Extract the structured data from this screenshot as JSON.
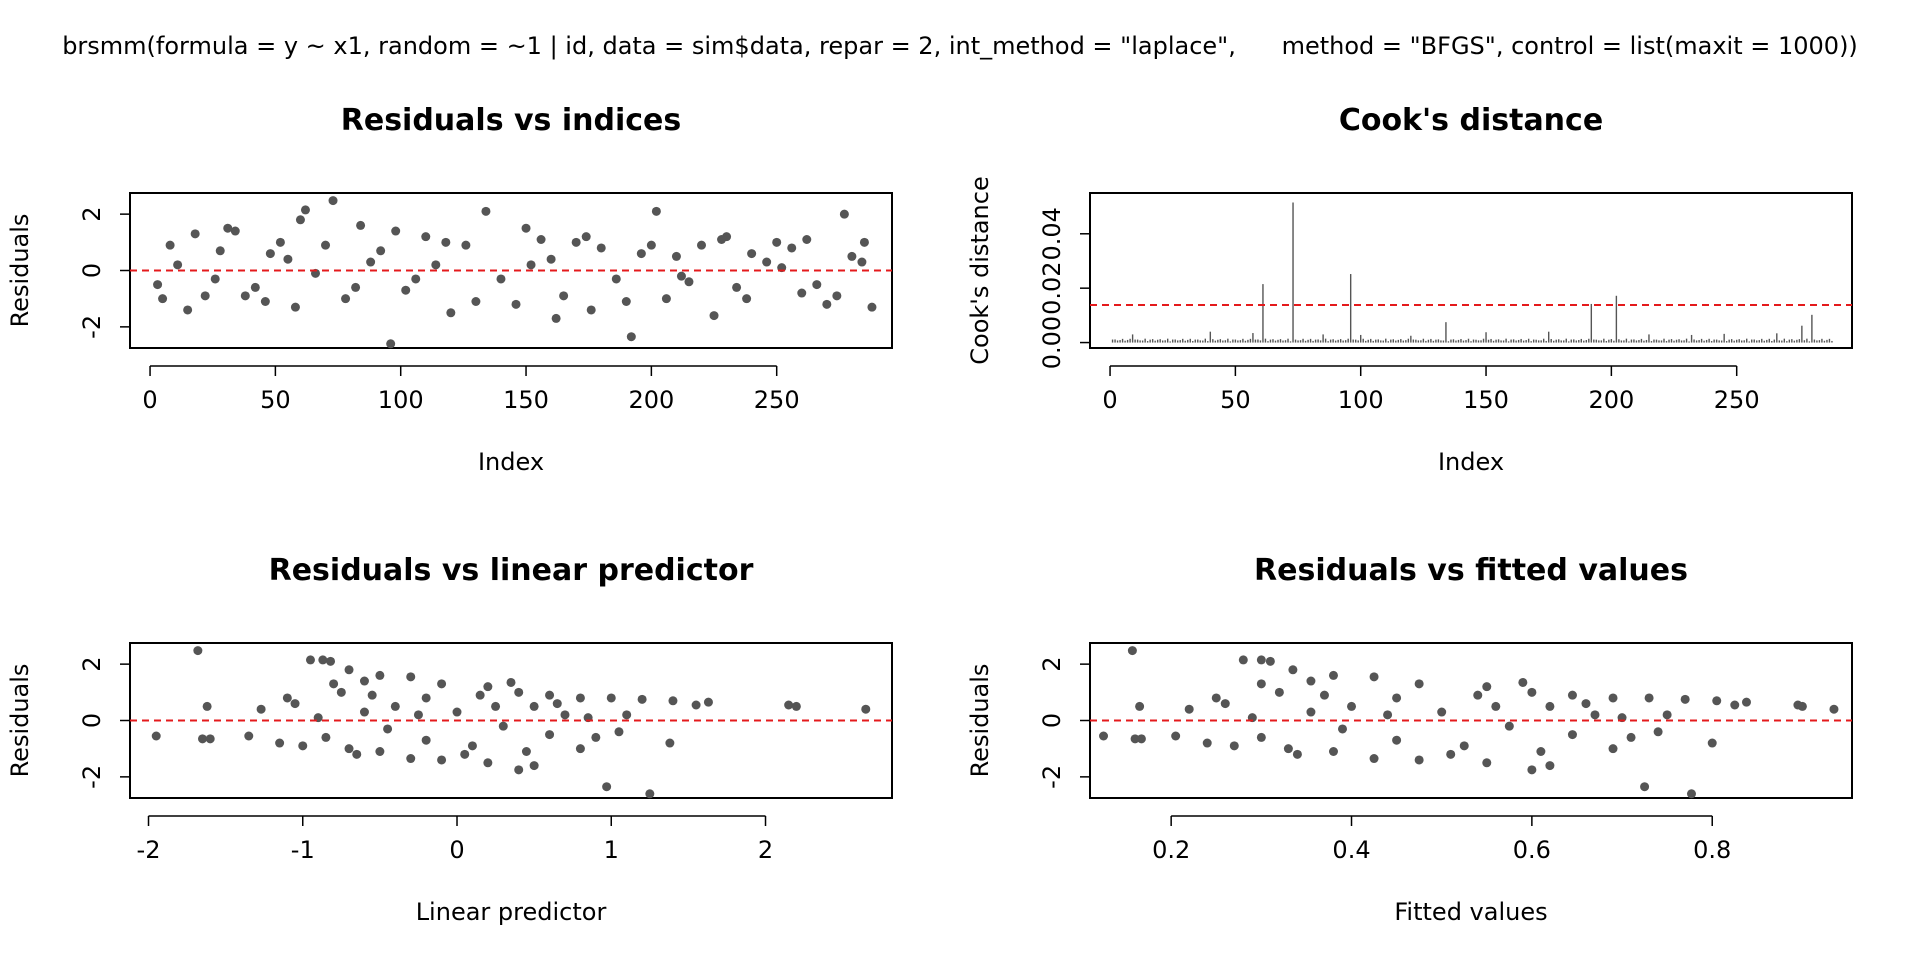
{
  "suptitle": "brsmm(formula = y ~ x1, random = ~1 | id, data = sim$data, repar = 2, int_method = \"laplace\",      method = \"BFGS\", control = list(maxit = 1000))",
  "colors": {
    "points": "#555555",
    "reference_line": "#e41a1c",
    "frame": "#000000"
  },
  "chart_data": [
    {
      "type": "scatter",
      "title": "Residuals vs indices",
      "xlabel": "Index",
      "ylabel": "Residuals",
      "xlim": [
        -8,
        296
      ],
      "ylim": [
        -2.75,
        2.75
      ],
      "xticks": [
        0,
        50,
        100,
        150,
        200,
        250
      ],
      "xtick_labels": [
        "0",
        "50",
        "100",
        "150",
        "200",
        "250"
      ],
      "yticks": [
        -2,
        0,
        2
      ],
      "ytick_labels": [
        "-2",
        "0",
        "2"
      ],
      "grid": false,
      "hline": {
        "y": 0,
        "style": "dashed"
      },
      "points": [
        [
          73,
          2.48
        ],
        [
          62,
          2.15
        ],
        [
          96,
          -2.6
        ],
        [
          134,
          2.1
        ],
        [
          192,
          -2.35
        ],
        [
          202,
          2.1
        ],
        [
          277,
          2.0
        ],
        [
          84,
          1.6
        ],
        [
          150,
          1.5
        ],
        [
          230,
          1.2
        ],
        [
          60,
          1.8
        ],
        [
          34,
          1.4
        ],
        [
          5,
          -1.0
        ],
        [
          18,
          1.3
        ],
        [
          26,
          -0.3
        ],
        [
          42,
          -0.6
        ],
        [
          55,
          0.4
        ],
        [
          110,
          1.2
        ],
        [
          120,
          -1.5
        ],
        [
          165,
          -0.9
        ],
        [
          180,
          0.8
        ],
        [
          215,
          -0.4
        ],
        [
          240,
          0.6
        ],
        [
          260,
          -0.8
        ],
        [
          285,
          1.0
        ],
        [
          8,
          0.9
        ],
        [
          46,
          -1.1
        ],
        [
          88,
          0.3
        ],
        [
          102,
          -0.7
        ],
        [
          140,
          -0.3
        ],
        [
          156,
          1.1
        ],
        [
          176,
          -1.4
        ],
        [
          210,
          0.5
        ],
        [
          225,
          -1.6
        ],
        [
          250,
          1.0
        ],
        [
          270,
          -1.2
        ],
        [
          3,
          -0.5
        ],
        [
          15,
          -1.4
        ],
        [
          28,
          0.7
        ],
        [
          38,
          -0.9
        ],
        [
          52,
          1.0
        ],
        [
          66,
          -0.1
        ],
        [
          78,
          -1.0
        ],
        [
          92,
          0.7
        ],
        [
          114,
          0.2
        ],
        [
          126,
          0.9
        ],
        [
          146,
          -1.2
        ],
        [
          160,
          0.4
        ],
        [
          170,
          1.0
        ],
        [
          186,
          -0.3
        ],
        [
          196,
          0.6
        ],
        [
          206,
          -1.0
        ],
        [
          220,
          0.9
        ],
        [
          234,
          -0.6
        ],
        [
          246,
          0.3
        ],
        [
          256,
          0.8
        ],
        [
          266,
          -0.5
        ],
        [
          280,
          0.5
        ],
        [
          288,
          -1.3
        ],
        [
          11,
          0.2
        ],
        [
          22,
          -0.9
        ],
        [
          31,
          1.5
        ],
        [
          48,
          0.6
        ],
        [
          58,
          -1.3
        ],
        [
          70,
          0.9
        ],
        [
          82,
          -0.6
        ],
        [
          98,
          1.4
        ],
        [
          106,
          -0.3
        ],
        [
          118,
          1.0
        ],
        [
          130,
          -1.1
        ],
        [
          152,
          0.2
        ],
        [
          162,
          -1.7
        ],
        [
          174,
          1.2
        ],
        [
          190,
          -1.1
        ],
        [
          200,
          0.9
        ],
        [
          212,
          -0.2
        ],
        [
          228,
          1.1
        ],
        [
          238,
          -1.0
        ],
        [
          252,
          0.1
        ],
        [
          262,
          1.1
        ],
        [
          274,
          -0.9
        ],
        [
          284,
          0.3
        ]
      ]
    },
    {
      "type": "bar",
      "title": "Cook's distance",
      "xlabel": "Index",
      "ylabel": "Cook's distance",
      "xlim": [
        -8,
        296
      ],
      "ylim": [
        -0.002,
        0.055
      ],
      "xticks": [
        0,
        50,
        100,
        150,
        200,
        250
      ],
      "xtick_labels": [
        "0",
        "50",
        "100",
        "150",
        "200",
        "250"
      ],
      "yticks": [
        0.0,
        0.02,
        0.04
      ],
      "ytick_labels": [
        "0.00",
        "0.02",
        "0.04"
      ],
      "grid": false,
      "hline": {
        "y": 0.0138,
        "style": "dashed"
      },
      "n": 288,
      "baseline": 0.0008,
      "values": [
        [
          61,
          0.0215
        ],
        [
          73,
          0.0515
        ],
        [
          96,
          0.0252
        ],
        [
          134,
          0.0075
        ],
        [
          192,
          0.0142
        ],
        [
          202,
          0.0172
        ],
        [
          276,
          0.0062
        ],
        [
          280,
          0.0102
        ],
        [
          9,
          0.003
        ],
        [
          40,
          0.004
        ],
        [
          57,
          0.0035
        ],
        [
          85,
          0.003
        ],
        [
          150,
          0.0038
        ],
        [
          175,
          0.004
        ],
        [
          245,
          0.0032
        ],
        [
          266,
          0.0034
        ],
        [
          100,
          0.0028
        ],
        [
          120,
          0.0025
        ],
        [
          215,
          0.003
        ],
        [
          232,
          0.0028
        ]
      ]
    },
    {
      "type": "scatter",
      "title": "Residuals vs linear predictor",
      "xlabel": "Linear predictor",
      "ylabel": "Residuals",
      "xlim": [
        -2.12,
        2.82
      ],
      "ylim": [
        -2.75,
        2.75
      ],
      "xticks": [
        -2,
        -1,
        0,
        1,
        2
      ],
      "xtick_labels": [
        "-2",
        "-1",
        "0",
        "1",
        "2"
      ],
      "yticks": [
        -2,
        0,
        2
      ],
      "ytick_labels": [
        "-2",
        "0",
        "2"
      ],
      "grid": false,
      "hline": {
        "y": 0,
        "style": "dashed"
      },
      "points": [
        [
          -1.68,
          2.48
        ],
        [
          -1.95,
          -0.55
        ],
        [
          -1.62,
          0.5
        ],
        [
          -1.65,
          -0.65
        ],
        [
          -1.6,
          -0.65
        ],
        [
          -1.35,
          -0.55
        ],
        [
          -1.27,
          0.4
        ],
        [
          -1.15,
          -0.8
        ],
        [
          -1.1,
          0.8
        ],
        [
          -1.0,
          -0.9
        ],
        [
          -0.95,
          2.15
        ],
        [
          -0.87,
          2.15
        ],
        [
          -0.82,
          2.1
        ],
        [
          -0.75,
          1.0
        ],
        [
          -0.7,
          1.8
        ],
        [
          -0.6,
          1.4
        ],
        [
          -0.5,
          1.6
        ],
        [
          -0.3,
          1.55
        ],
        [
          -0.1,
          1.3
        ],
        [
          0.2,
          1.2
        ],
        [
          0.4,
          1.0
        ],
        [
          0.6,
          0.9
        ],
        [
          0.8,
          0.8
        ],
        [
          1.0,
          0.8
        ],
        [
          1.2,
          0.75
        ],
        [
          1.4,
          0.7
        ],
        [
          1.55,
          0.55
        ],
        [
          1.63,
          0.65
        ],
        [
          2.15,
          0.55
        ],
        [
          2.2,
          0.5
        ],
        [
          2.65,
          0.4
        ],
        [
          0.97,
          -2.35
        ],
        [
          1.25,
          -2.6
        ],
        [
          1.38,
          -0.8
        ],
        [
          0.5,
          -1.6
        ],
        [
          0.4,
          -1.75
        ],
        [
          0.2,
          -1.5
        ],
        [
          -0.1,
          -1.4
        ],
        [
          -0.3,
          -1.35
        ],
        [
          -0.5,
          -1.1
        ],
        [
          -0.7,
          -1.0
        ],
        [
          -0.85,
          -0.6
        ],
        [
          -0.9,
          0.1
        ],
        [
          -0.6,
          0.3
        ],
        [
          -0.4,
          0.5
        ],
        [
          -0.2,
          0.8
        ],
        [
          0.0,
          0.3
        ],
        [
          0.3,
          -0.2
        ],
        [
          0.6,
          -0.5
        ],
        [
          0.9,
          -0.6
        ],
        [
          1.1,
          0.2
        ],
        [
          0.7,
          0.2
        ],
        [
          0.5,
          0.5
        ],
        [
          0.1,
          -0.9
        ],
        [
          -0.2,
          -0.7
        ],
        [
          -0.45,
          -0.3
        ],
        [
          -0.65,
          -1.2
        ],
        [
          0.35,
          1.35
        ],
        [
          0.8,
          -1.0
        ],
        [
          -1.05,
          0.6
        ],
        [
          -0.25,
          0.2
        ],
        [
          0.15,
          0.9
        ],
        [
          0.45,
          -1.1
        ],
        [
          0.65,
          0.6
        ],
        [
          -0.55,
          0.9
        ],
        [
          -0.8,
          1.3
        ],
        [
          0.05,
          -1.2
        ],
        [
          0.25,
          0.5
        ],
        [
          0.85,
          0.1
        ],
        [
          1.05,
          -0.4
        ]
      ]
    },
    {
      "type": "scatter",
      "title": "Residuals vs fitted values",
      "xlabel": "Fitted values",
      "ylabel": "Residuals",
      "xlim": [
        0.11,
        0.955
      ],
      "ylim": [
        -2.75,
        2.75
      ],
      "xticks": [
        0.2,
        0.4,
        0.6,
        0.8
      ],
      "xtick_labels": [
        "0.2",
        "0.4",
        "0.6",
        "0.8"
      ],
      "yticks": [
        -2,
        0,
        2
      ],
      "ytick_labels": [
        "-2",
        "0",
        "2"
      ],
      "grid": false,
      "hline": {
        "y": 0,
        "style": "dashed"
      },
      "points": [
        [
          0.157,
          2.48
        ],
        [
          0.125,
          -0.55
        ],
        [
          0.165,
          0.5
        ],
        [
          0.16,
          -0.65
        ],
        [
          0.167,
          -0.65
        ],
        [
          0.205,
          -0.55
        ],
        [
          0.22,
          0.4
        ],
        [
          0.24,
          -0.8
        ],
        [
          0.25,
          0.8
        ],
        [
          0.27,
          -0.9
        ],
        [
          0.28,
          2.15
        ],
        [
          0.3,
          2.15
        ],
        [
          0.31,
          2.1
        ],
        [
          0.32,
          1.0
        ],
        [
          0.335,
          1.8
        ],
        [
          0.355,
          1.4
        ],
        [
          0.38,
          1.6
        ],
        [
          0.425,
          1.55
        ],
        [
          0.475,
          1.3
        ],
        [
          0.55,
          1.2
        ],
        [
          0.6,
          1.0
        ],
        [
          0.645,
          0.9
        ],
        [
          0.69,
          0.8
        ],
        [
          0.73,
          0.8
        ],
        [
          0.77,
          0.75
        ],
        [
          0.805,
          0.7
        ],
        [
          0.825,
          0.55
        ],
        [
          0.838,
          0.65
        ],
        [
          0.895,
          0.55
        ],
        [
          0.9,
          0.5
        ],
        [
          0.935,
          0.4
        ],
        [
          0.725,
          -2.35
        ],
        [
          0.777,
          -2.6
        ],
        [
          0.8,
          -0.8
        ],
        [
          0.62,
          -1.6
        ],
        [
          0.6,
          -1.75
        ],
        [
          0.55,
          -1.5
        ],
        [
          0.475,
          -1.4
        ],
        [
          0.425,
          -1.35
        ],
        [
          0.38,
          -1.1
        ],
        [
          0.33,
          -1.0
        ],
        [
          0.3,
          -0.6
        ],
        [
          0.29,
          0.1
        ],
        [
          0.355,
          0.3
        ],
        [
          0.4,
          0.5
        ],
        [
          0.45,
          0.8
        ],
        [
          0.5,
          0.3
        ],
        [
          0.575,
          -0.2
        ],
        [
          0.645,
          -0.5
        ],
        [
          0.71,
          -0.6
        ],
        [
          0.75,
          0.2
        ],
        [
          0.67,
          0.2
        ],
        [
          0.62,
          0.5
        ],
        [
          0.525,
          -0.9
        ],
        [
          0.45,
          -0.7
        ],
        [
          0.39,
          -0.3
        ],
        [
          0.34,
          -1.2
        ],
        [
          0.59,
          1.35
        ],
        [
          0.69,
          -1.0
        ],
        [
          0.26,
          0.6
        ],
        [
          0.44,
          0.2
        ],
        [
          0.54,
          0.9
        ],
        [
          0.61,
          -1.1
        ],
        [
          0.66,
          0.6
        ],
        [
          0.37,
          0.9
        ],
        [
          0.3,
          1.3
        ],
        [
          0.51,
          -1.2
        ],
        [
          0.56,
          0.5
        ],
        [
          0.7,
          0.1
        ],
        [
          0.74,
          -0.4
        ]
      ]
    }
  ]
}
